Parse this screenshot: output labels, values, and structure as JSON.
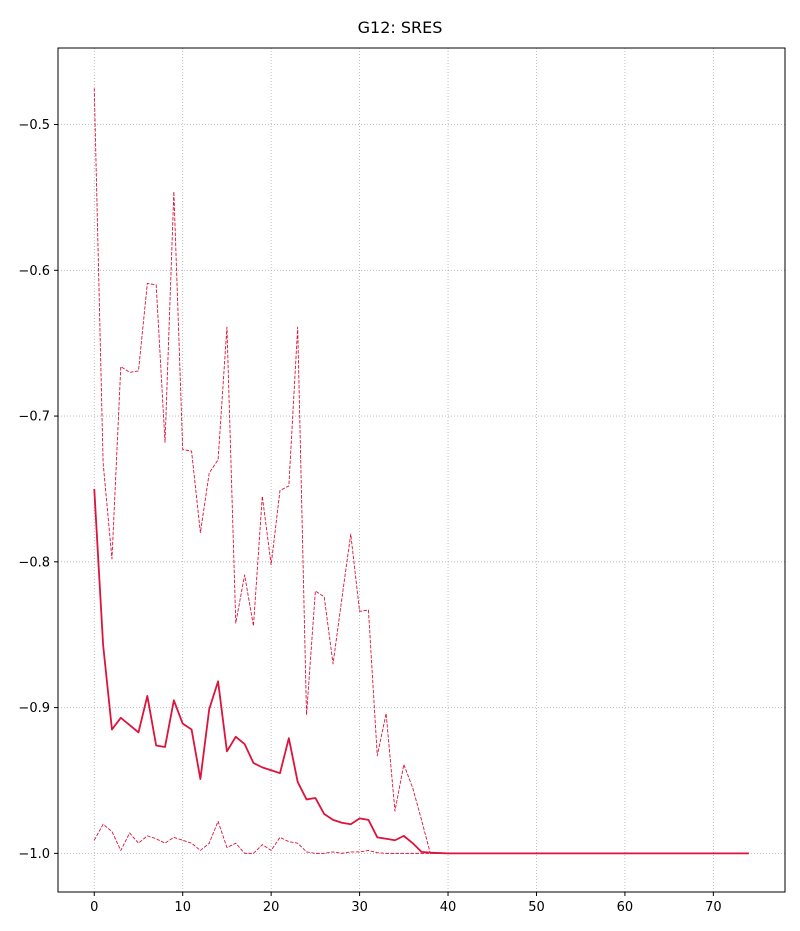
{
  "chart_data": {
    "type": "line",
    "title": "G12: SRES",
    "xlabel": "",
    "ylabel": "",
    "xlim": [
      -4.1,
      78.1
    ],
    "ylim": [
      -1.0265,
      -0.4475
    ],
    "xticks": [
      0,
      10,
      20,
      30,
      40,
      50,
      60,
      70
    ],
    "yticks": [
      -1.0,
      -0.9,
      -0.8,
      -0.7,
      -0.6,
      -0.5
    ],
    "grid": true,
    "color": "#dc143c",
    "series": [
      {
        "style": "solid",
        "x": [
          0,
          1,
          2,
          3,
          4,
          5,
          6,
          7,
          8,
          9,
          10,
          11,
          12,
          13,
          14,
          15,
          16,
          17,
          18,
          19,
          20,
          21,
          22,
          23,
          24,
          25,
          26,
          27,
          28,
          29,
          30,
          31,
          32,
          33,
          34,
          35,
          36,
          37,
          38,
          39,
          40,
          45,
          50,
          55,
          60,
          65,
          70,
          74
        ],
        "values": [
          -0.75,
          -0.857,
          -0.915,
          -0.907,
          -0.912,
          -0.917,
          -0.892,
          -0.926,
          -0.927,
          -0.895,
          -0.911,
          -0.915,
          -0.949,
          -0.901,
          -0.882,
          -0.93,
          -0.92,
          -0.925,
          -0.938,
          -0.941,
          -0.943,
          -0.945,
          -0.921,
          -0.951,
          -0.963,
          -0.962,
          -0.973,
          -0.977,
          -0.979,
          -0.98,
          -0.976,
          -0.977,
          -0.989,
          -0.99,
          -0.991,
          -0.988,
          -0.993,
          -0.999,
          -0.9995,
          -0.9998,
          -1.0,
          -1.0,
          -1.0,
          -1.0,
          -1.0,
          -1.0,
          -1.0,
          -1.0
        ]
      },
      {
        "style": "dashed",
        "x": [
          0,
          1,
          2,
          3,
          4,
          5,
          6,
          7,
          8,
          9,
          10,
          11,
          12,
          13,
          14,
          15,
          16,
          17,
          18,
          19,
          20,
          21,
          22,
          23,
          24,
          25,
          26,
          27,
          28,
          29,
          30,
          31,
          32,
          33,
          34,
          35,
          36,
          37,
          38,
          39,
          40,
          45,
          50,
          55,
          60,
          65,
          70,
          74
        ],
        "values": [
          -0.475,
          -0.732,
          -0.798,
          -0.666,
          -0.67,
          -0.669,
          -0.609,
          -0.61,
          -0.718,
          -0.546,
          -0.723,
          -0.724,
          -0.78,
          -0.739,
          -0.73,
          -0.639,
          -0.842,
          -0.809,
          -0.844,
          -0.755,
          -0.802,
          -0.751,
          -0.748,
          -0.639,
          -0.905,
          -0.82,
          -0.824,
          -0.87,
          -0.825,
          -0.781,
          -0.834,
          -0.833,
          -0.933,
          -0.904,
          -0.971,
          -0.939,
          -0.955,
          -0.977,
          -1.0,
          -1.0,
          -1.0,
          -1.0,
          -1.0,
          -1.0,
          -1.0,
          -1.0,
          -1.0,
          -1.0
        ]
      },
      {
        "style": "dashed",
        "x": [
          0,
          1,
          2,
          3,
          4,
          5,
          6,
          7,
          8,
          9,
          10,
          11,
          12,
          13,
          14,
          15,
          16,
          17,
          18,
          19,
          20,
          21,
          22,
          23,
          24,
          25,
          26,
          27,
          28,
          29,
          30,
          31,
          32,
          33,
          34,
          35,
          36,
          37,
          38,
          39,
          40,
          45,
          50,
          55,
          60,
          65,
          70,
          74
        ],
        "values": [
          -0.991,
          -0.98,
          -0.985,
          -0.998,
          -0.986,
          -0.993,
          -0.988,
          -0.99,
          -0.993,
          -0.989,
          -0.991,
          -0.993,
          -0.998,
          -0.993,
          -0.978,
          -0.996,
          -0.993,
          -1.0,
          -1.0,
          -0.994,
          -0.998,
          -0.989,
          -0.992,
          -0.993,
          -0.999,
          -1.0,
          -1.0,
          -0.999,
          -1.0,
          -0.999,
          -0.999,
          -0.998,
          -0.9995,
          -1.0,
          -1.0,
          -1.0,
          -1.0,
          -1.0,
          -1.0,
          -1.0,
          -1.0,
          -1.0,
          -1.0,
          -1.0,
          -1.0,
          -1.0,
          -1.0,
          -1.0
        ]
      }
    ]
  }
}
